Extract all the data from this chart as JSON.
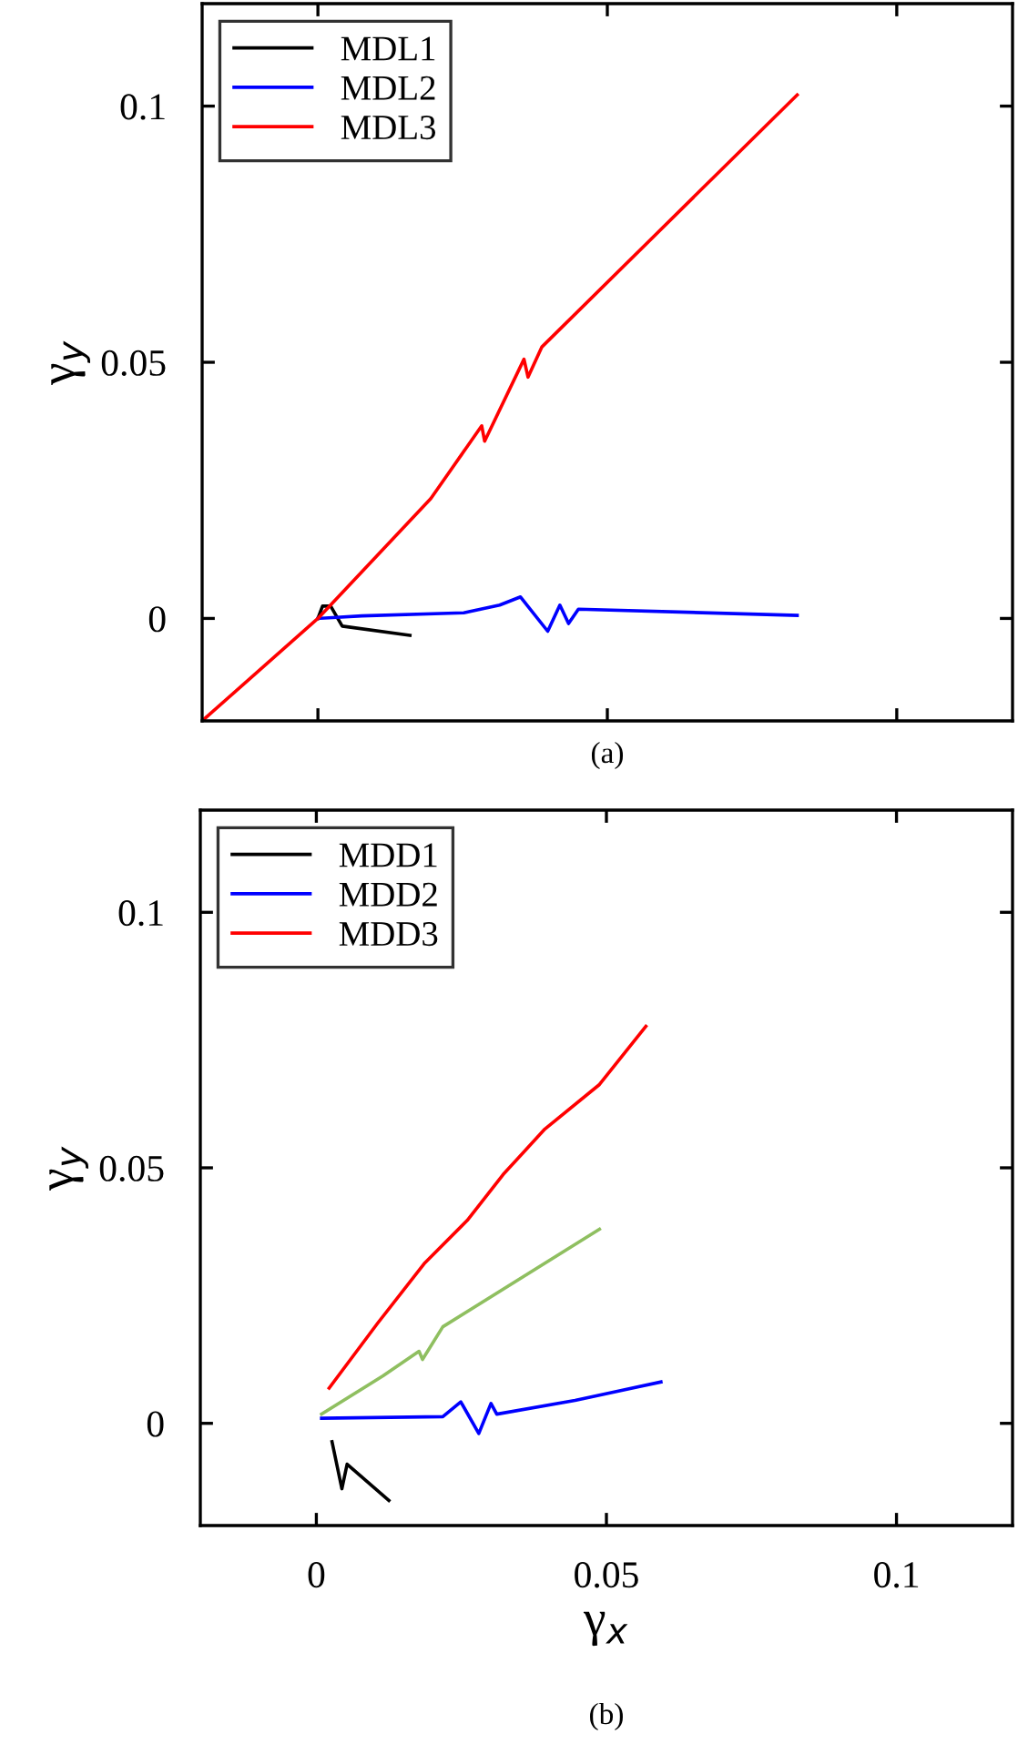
{
  "chart_data": [
    {
      "type": "line",
      "ylabel": "γ$_{y}$",
      "annotations": [
        "(a)"
      ],
      "xlim": [
        -0.02,
        0.12
      ],
      "ylim": [
        -0.02,
        0.12
      ],
      "xticks": [
        0,
        0.05,
        0.1
      ],
      "yticks": [
        0,
        0.05,
        0.1
      ],
      "tick_labels": "y",
      "legend": "top left",
      "grid": false,
      "line_style": "solid",
      "marker": "none",
      "series": [
        {
          "name": "MDL1",
          "color": "#000000",
          "x": [
            0,
            0.0008,
            0.0022,
            0.0042,
            0.0159
          ],
          "values": [
            0,
            0.0024,
            0.0024,
            -0.0015,
            -0.0033
          ]
        },
        {
          "name": "MDL2",
          "color": "#0000ff",
          "x": [
            0,
            0.0076,
            0.0252,
            0.0314,
            0.035,
            0.0397,
            0.0418,
            0.0433,
            0.045,
            0.0828
          ],
          "values": [
            0,
            0.0005,
            0.0011,
            0.0026,
            0.0042,
            -0.0025,
            0.0026,
            -0.001,
            0.0018,
            0.0006
          ]
        },
        {
          "name": "MDL3",
          "color": "#ff0000",
          "x": [
            -0.02,
            0,
            0.0195,
            0.0283,
            0.0288,
            0.0356,
            0.0363,
            0.0387,
            0.0828
          ],
          "values": [
            -0.02,
            0,
            0.0234,
            0.0376,
            0.0346,
            0.0506,
            0.0471,
            0.053,
            0.1022
          ]
        }
      ]
    },
    {
      "type": "line",
      "xlabel": "γ$_{x}$",
      "ylabel": "γ$_{y}$",
      "annotations": [
        "(b)"
      ],
      "xlim": [
        -0.02,
        0.12
      ],
      "ylim": [
        -0.02,
        0.12
      ],
      "xticks": [
        0,
        0.05,
        0.1
      ],
      "yticks": [
        0,
        0.05,
        0.1
      ],
      "legend": "top left",
      "grid": false,
      "line_style": "solid",
      "marker": "none",
      "series": [
        {
          "name": "MDD1",
          "color": "#000000",
          "x": [
            0.0027,
            0.0044,
            0.0053,
            0.0125
          ],
          "values": [
            -0.0036,
            -0.0128,
            -0.008,
            -0.0151
          ]
        },
        {
          "name": "MDD2",
          "color": "#0000ff",
          "x": [
            0.0009,
            0.0218,
            0.0249,
            0.028,
            0.0301,
            0.0311,
            0.0446,
            0.0594
          ],
          "values": [
            0.001,
            0.0013,
            0.0042,
            -0.002,
            0.0039,
            0.0018,
            0.0045,
            0.0081
          ]
        },
        {
          "name": "MDD3",
          "color": "#ff0000",
          "x": [
            0.0022,
            0.0105,
            0.0187,
            0.026,
            0.0322,
            0.0394,
            0.0488,
            0.0568
          ],
          "values": [
            0.0069,
            0.0195,
            0.0314,
            0.0397,
            0.0487,
            0.0576,
            0.0663,
            0.0777
          ]
        },
        {
          "color": "#8fbf60",
          "x": [
            0.0009,
            0.0115,
            0.0177,
            0.0183,
            0.0218,
            0.0488
          ],
          "values": [
            0.0018,
            0.0093,
            0.0141,
            0.0125,
            0.0189,
            0.038
          ]
        }
      ]
    }
  ]
}
